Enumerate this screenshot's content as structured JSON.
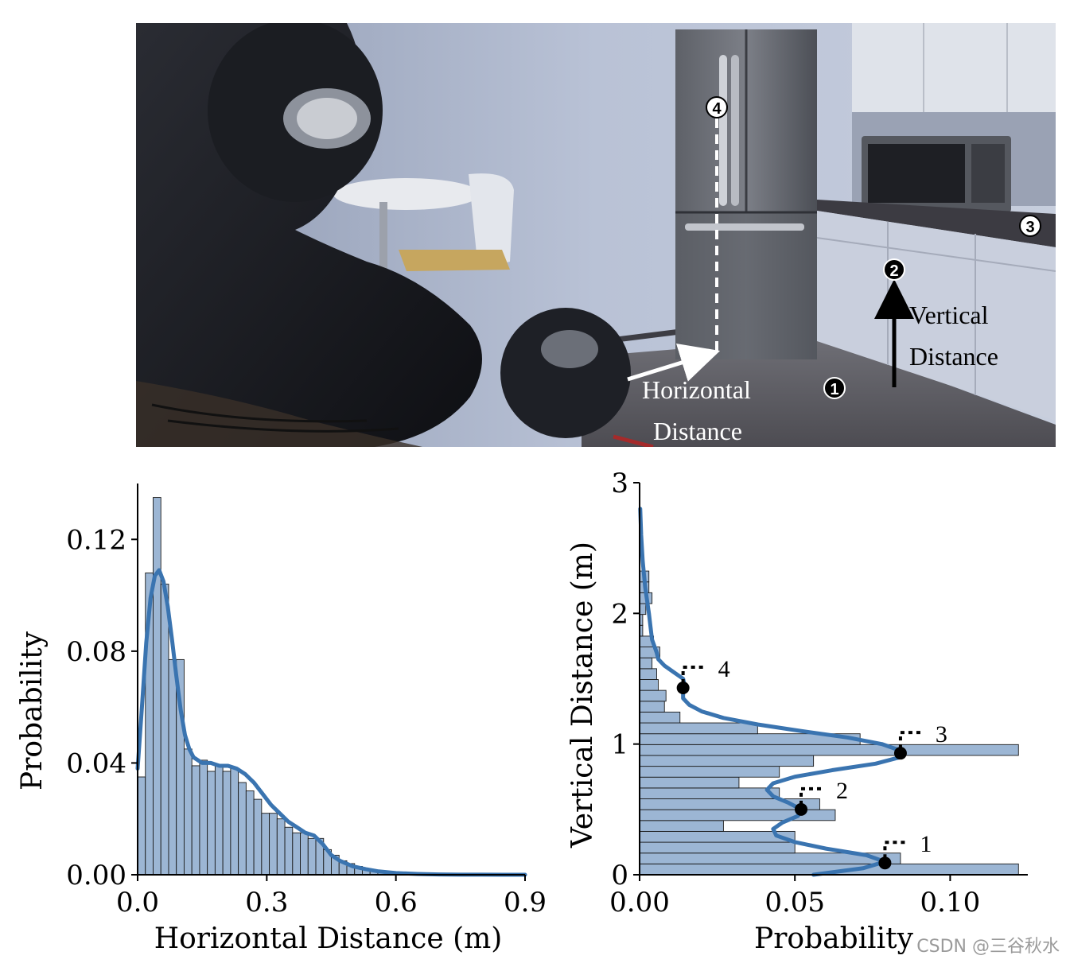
{
  "photo": {
    "labels": {
      "horizontal_line1": "Horizontal",
      "horizontal_line2": "Distance",
      "vertical_line1": "Vertical",
      "vertical_line2": "Distance"
    },
    "markers": [
      "1",
      "2",
      "3",
      "4"
    ]
  },
  "watermark": "CSDN @三谷秋水",
  "colors": {
    "bar_fill": "#9cb6d4",
    "kde_line": "#3a74b0",
    "bar_edge": "#1a1a1a"
  },
  "chart_data": [
    {
      "type": "bar",
      "orientation": "vertical",
      "xlabel": "Horizontal Distance (m)",
      "ylabel": "Probability",
      "xlim": [
        0,
        0.9
      ],
      "ylim": [
        0,
        0.14
      ],
      "xticks": [
        "0.0",
        "0.3",
        "0.6",
        "0.9"
      ],
      "yticks": [
        "0.00",
        "0.04",
        "0.08",
        "0.12"
      ],
      "xtick_values": [
        0,
        0.3,
        0.6,
        0.9
      ],
      "ytick_values": [
        0,
        0.04,
        0.08,
        0.12
      ],
      "bin_width": 0.018,
      "bin_starts": [
        0.0,
        0.018,
        0.036,
        0.054,
        0.072,
        0.09,
        0.108,
        0.126,
        0.144,
        0.162,
        0.18,
        0.198,
        0.216,
        0.234,
        0.252,
        0.27,
        0.288,
        0.306,
        0.324,
        0.342,
        0.36,
        0.378,
        0.396,
        0.414,
        0.432,
        0.45,
        0.468,
        0.486,
        0.504,
        0.522,
        0.54,
        0.558,
        0.576
      ],
      "values": [
        0.035,
        0.108,
        0.135,
        0.104,
        0.077,
        0.077,
        0.045,
        0.039,
        0.041,
        0.037,
        0.039,
        0.037,
        0.038,
        0.033,
        0.03,
        0.027,
        0.022,
        0.022,
        0.02,
        0.017,
        0.015,
        0.015,
        0.013,
        0.013,
        0.009,
        0.007,
        0.005,
        0.004,
        0.003,
        0.002,
        0.0015,
        0.001,
        0.0007
      ],
      "kde": {
        "x": [
          0.0,
          0.01,
          0.02,
          0.03,
          0.04,
          0.05,
          0.06,
          0.07,
          0.08,
          0.09,
          0.1,
          0.11,
          0.12,
          0.13,
          0.15,
          0.17,
          0.19,
          0.21,
          0.23,
          0.25,
          0.27,
          0.29,
          0.31,
          0.33,
          0.35,
          0.37,
          0.39,
          0.41,
          0.43,
          0.45,
          0.47,
          0.5,
          0.53,
          0.56,
          0.6,
          0.65,
          0.7,
          0.75,
          0.8,
          0.85,
          0.9
        ],
        "y": [
          0.038,
          0.06,
          0.083,
          0.099,
          0.107,
          0.109,
          0.105,
          0.096,
          0.084,
          0.071,
          0.059,
          0.05,
          0.045,
          0.042,
          0.04,
          0.04,
          0.039,
          0.039,
          0.038,
          0.036,
          0.033,
          0.029,
          0.025,
          0.022,
          0.019,
          0.017,
          0.015,
          0.014,
          0.011,
          0.007,
          0.005,
          0.003,
          0.002,
          0.0012,
          0.0006,
          0.0003,
          0.0001,
          5e-05,
          2e-05,
          1e-05,
          0.0
        ]
      }
    },
    {
      "type": "bar",
      "orientation": "horizontal",
      "xlabel": "Probability",
      "ylabel": "Vertical Distance (m)",
      "xlim": [
        0,
        0.125
      ],
      "ylim": [
        0,
        3
      ],
      "xticks": [
        "0.00",
        "0.05",
        "0.10"
      ],
      "yticks": [
        "0",
        "1",
        "2",
        "3"
      ],
      "xtick_values": [
        0,
        0.05,
        0.1
      ],
      "ytick_values": [
        0,
        1,
        2,
        3
      ],
      "bin_height": 0.083,
      "bin_starts": [
        0.0,
        0.083,
        0.166,
        0.249,
        0.332,
        0.415,
        0.498,
        0.581,
        0.664,
        0.747,
        0.83,
        0.913,
        0.996,
        1.079,
        1.162,
        1.245,
        1.328,
        1.411,
        1.494,
        1.577,
        1.66,
        1.743,
        1.826,
        1.909,
        1.992,
        2.075,
        2.158,
        2.241
      ],
      "values": [
        0.122,
        0.084,
        0.05,
        0.05,
        0.027,
        0.063,
        0.058,
        0.045,
        0.032,
        0.045,
        0.056,
        0.122,
        0.071,
        0.038,
        0.013,
        0.008,
        0.0085,
        0.006,
        0.0055,
        0.004,
        0.0065,
        0.0045,
        0.001,
        0.001,
        0.002,
        0.004,
        0.003,
        0.003
      ],
      "kde": {
        "y": [
          0.0,
          0.05,
          0.1,
          0.15,
          0.2,
          0.25,
          0.3,
          0.35,
          0.4,
          0.45,
          0.5,
          0.55,
          0.6,
          0.65,
          0.7,
          0.75,
          0.8,
          0.85,
          0.9,
          0.95,
          1.0,
          1.05,
          1.1,
          1.15,
          1.2,
          1.25,
          1.3,
          1.35,
          1.4,
          1.45,
          1.5,
          1.55,
          1.6,
          1.65,
          1.7,
          1.8,
          1.9,
          2.0,
          2.2,
          2.4,
          2.6,
          2.8
        ],
        "x": [
          0.056,
          0.072,
          0.079,
          0.073,
          0.06,
          0.05,
          0.044,
          0.043,
          0.046,
          0.051,
          0.052,
          0.048,
          0.043,
          0.041,
          0.043,
          0.05,
          0.062,
          0.076,
          0.084,
          0.084,
          0.078,
          0.067,
          0.052,
          0.038,
          0.027,
          0.02,
          0.016,
          0.014,
          0.014,
          0.0145,
          0.014,
          0.011,
          0.008,
          0.006,
          0.0055,
          0.004,
          0.0035,
          0.003,
          0.0018,
          0.001,
          0.0005,
          0.0002
        ]
      },
      "annotations": [
        {
          "label": "1",
          "x": 0.079,
          "y": 0.09
        },
        {
          "label": "2",
          "x": 0.052,
          "y": 0.5
        },
        {
          "label": "3",
          "x": 0.084,
          "y": 0.93
        },
        {
          "label": "4",
          "x": 0.014,
          "y": 1.43
        }
      ]
    }
  ]
}
